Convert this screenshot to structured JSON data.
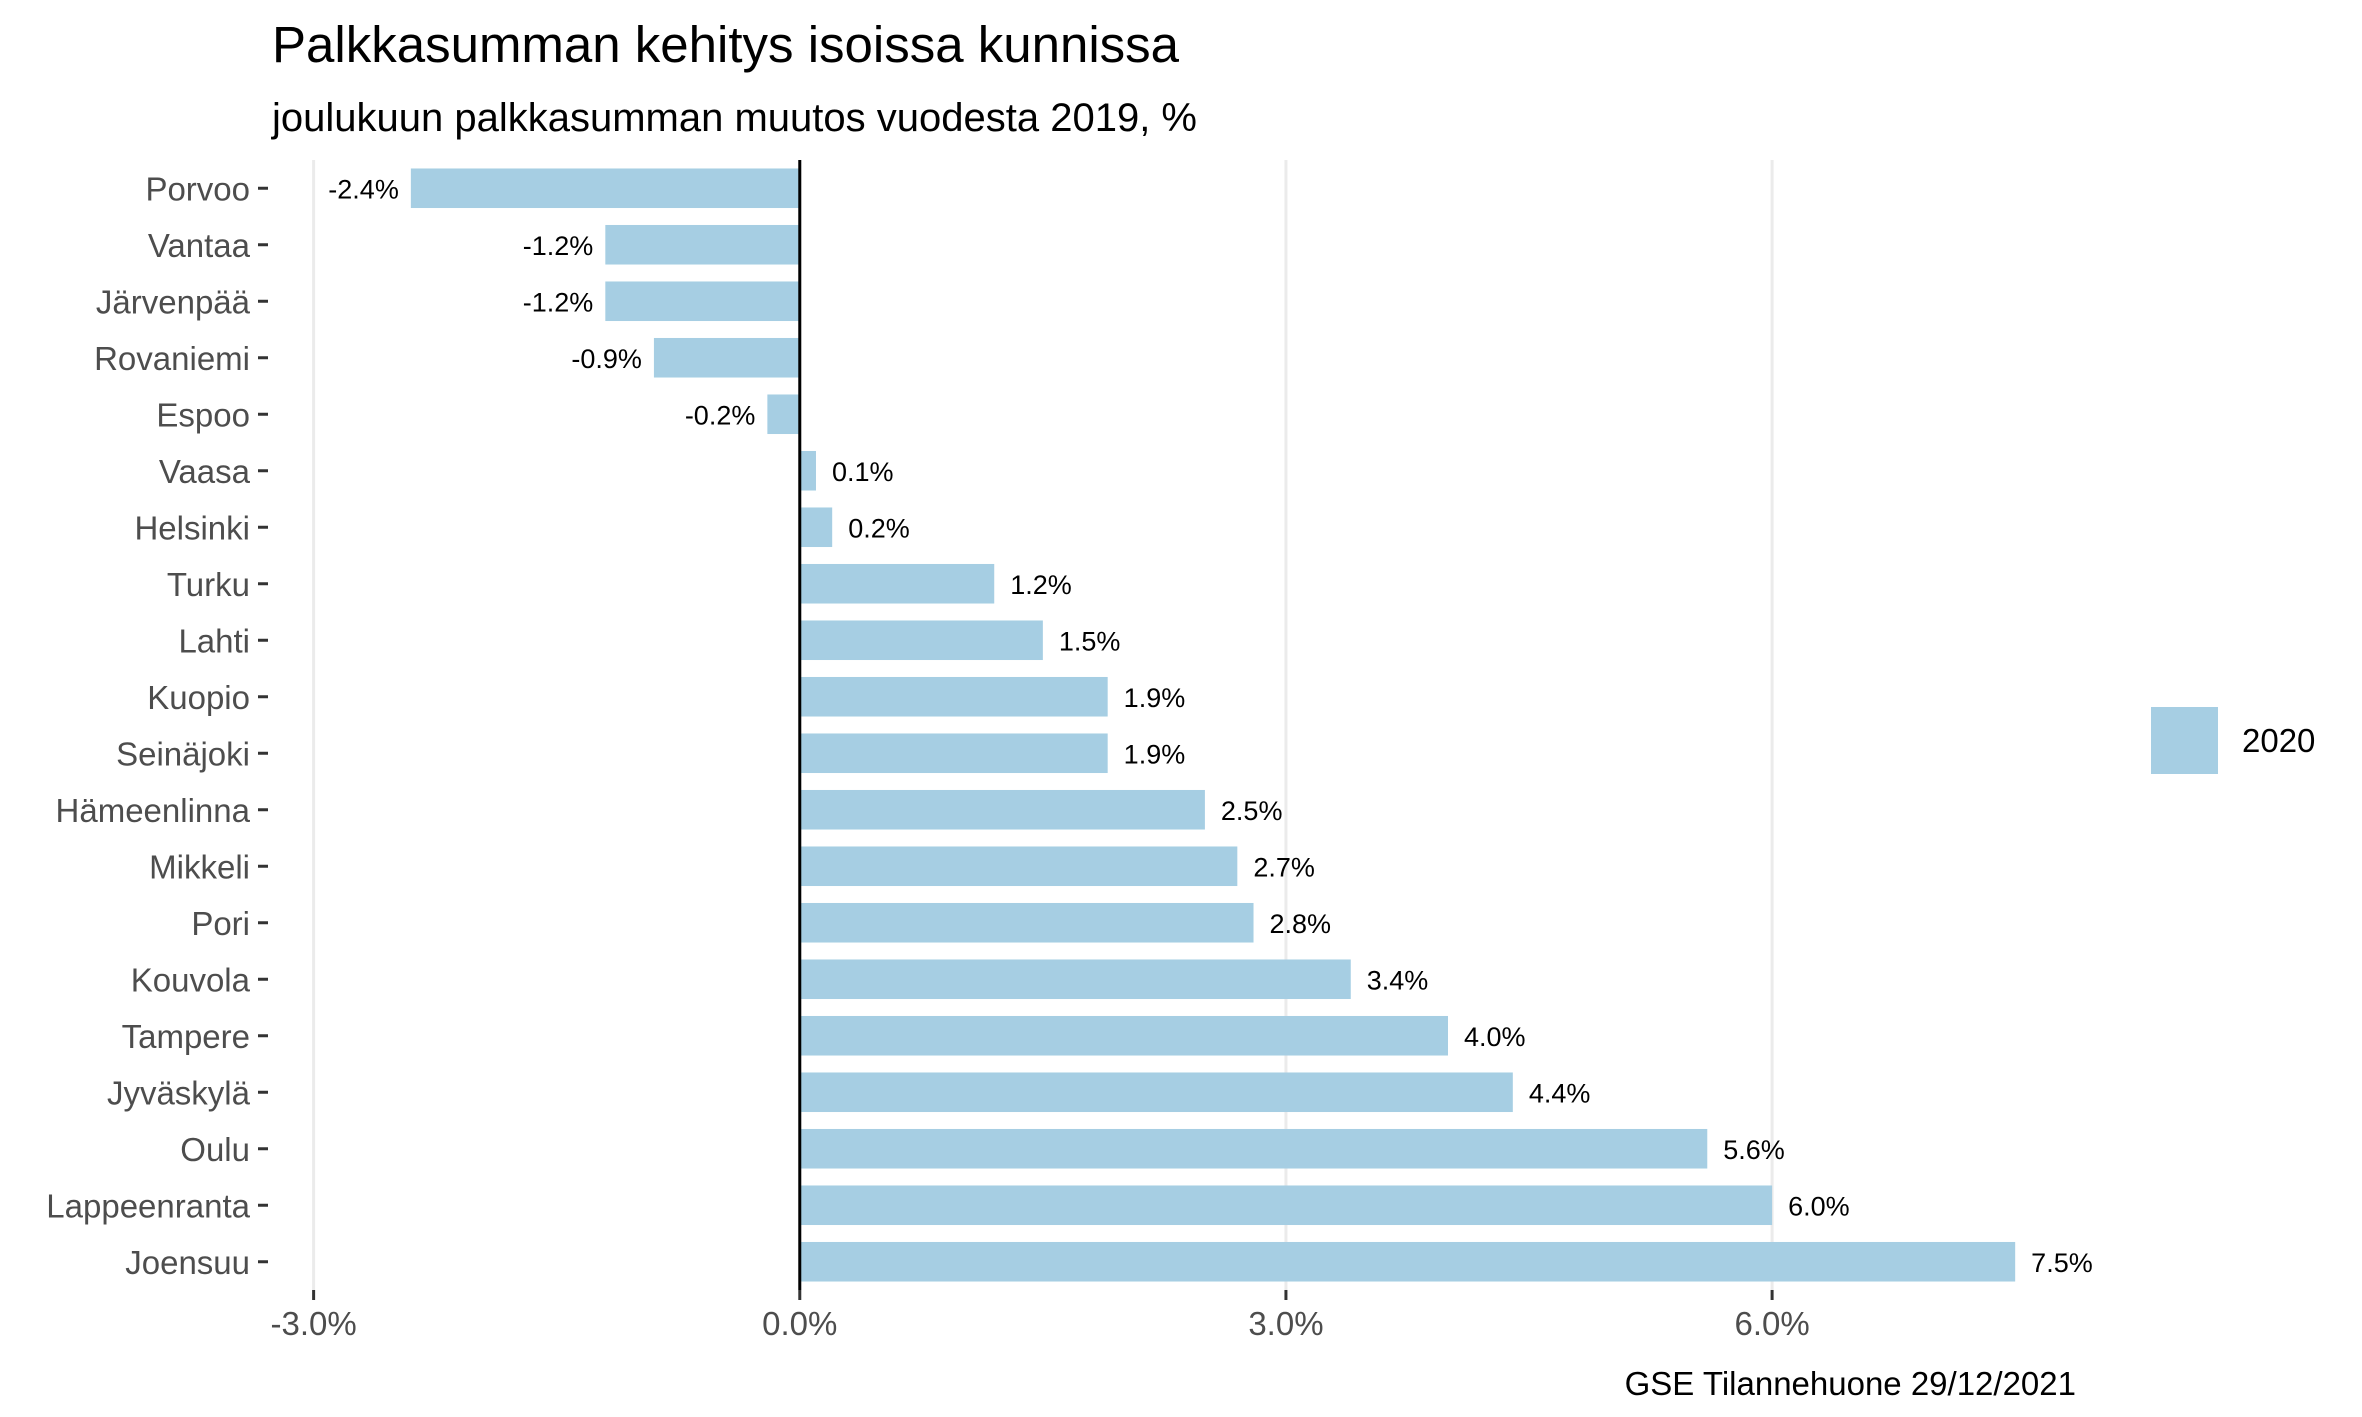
{
  "chart_data": {
    "type": "bar",
    "orientation": "horizontal",
    "title": "Palkkasumman kehitys isoissa kunnissa",
    "subtitle": "joulukuun palkkasumman muutos vuodesta 2019, %",
    "caption": "GSE Tilannehuone 29/12/2021",
    "categories": [
      "Porvoo",
      "Vantaa",
      "Järvenpää",
      "Rovaniemi",
      "Espoo",
      "Vaasa",
      "Helsinki",
      "Turku",
      "Lahti",
      "Kuopio",
      "Seinäjoki",
      "Hämeenlinna",
      "Mikkeli",
      "Pori",
      "Kouvola",
      "Tampere",
      "Jyväskylä",
      "Oulu",
      "Lappeenranta",
      "Joensuu"
    ],
    "series": [
      {
        "name": "2020",
        "color": "#a6cee3",
        "values": [
          -2.4,
          -1.2,
          -1.2,
          -0.9,
          -0.2,
          0.1,
          0.2,
          1.2,
          1.5,
          1.9,
          1.9,
          2.5,
          2.7,
          2.8,
          3.4,
          4.0,
          4.4,
          5.6,
          6.0,
          7.5
        ],
        "labels": [
          "-2.4%",
          "-1.2%",
          "-1.2%",
          "-0.9%",
          "-0.2%",
          "0.1%",
          "0.2%",
          "1.2%",
          "1.5%",
          "1.9%",
          "1.9%",
          "2.5%",
          "2.7%",
          "2.8%",
          "3.4%",
          "4.0%",
          "4.4%",
          "5.6%",
          "6.0%",
          "7.5%"
        ]
      }
    ],
    "xlim": [
      -3.3,
      7.9
    ],
    "xticks": [
      -3,
      0,
      3,
      6
    ],
    "xtick_labels": [
      "-3.0%",
      "0.0%",
      "3.0%",
      "6.0%"
    ],
    "grid": "vertical major",
    "zero_line": true,
    "legend_position": "right"
  }
}
